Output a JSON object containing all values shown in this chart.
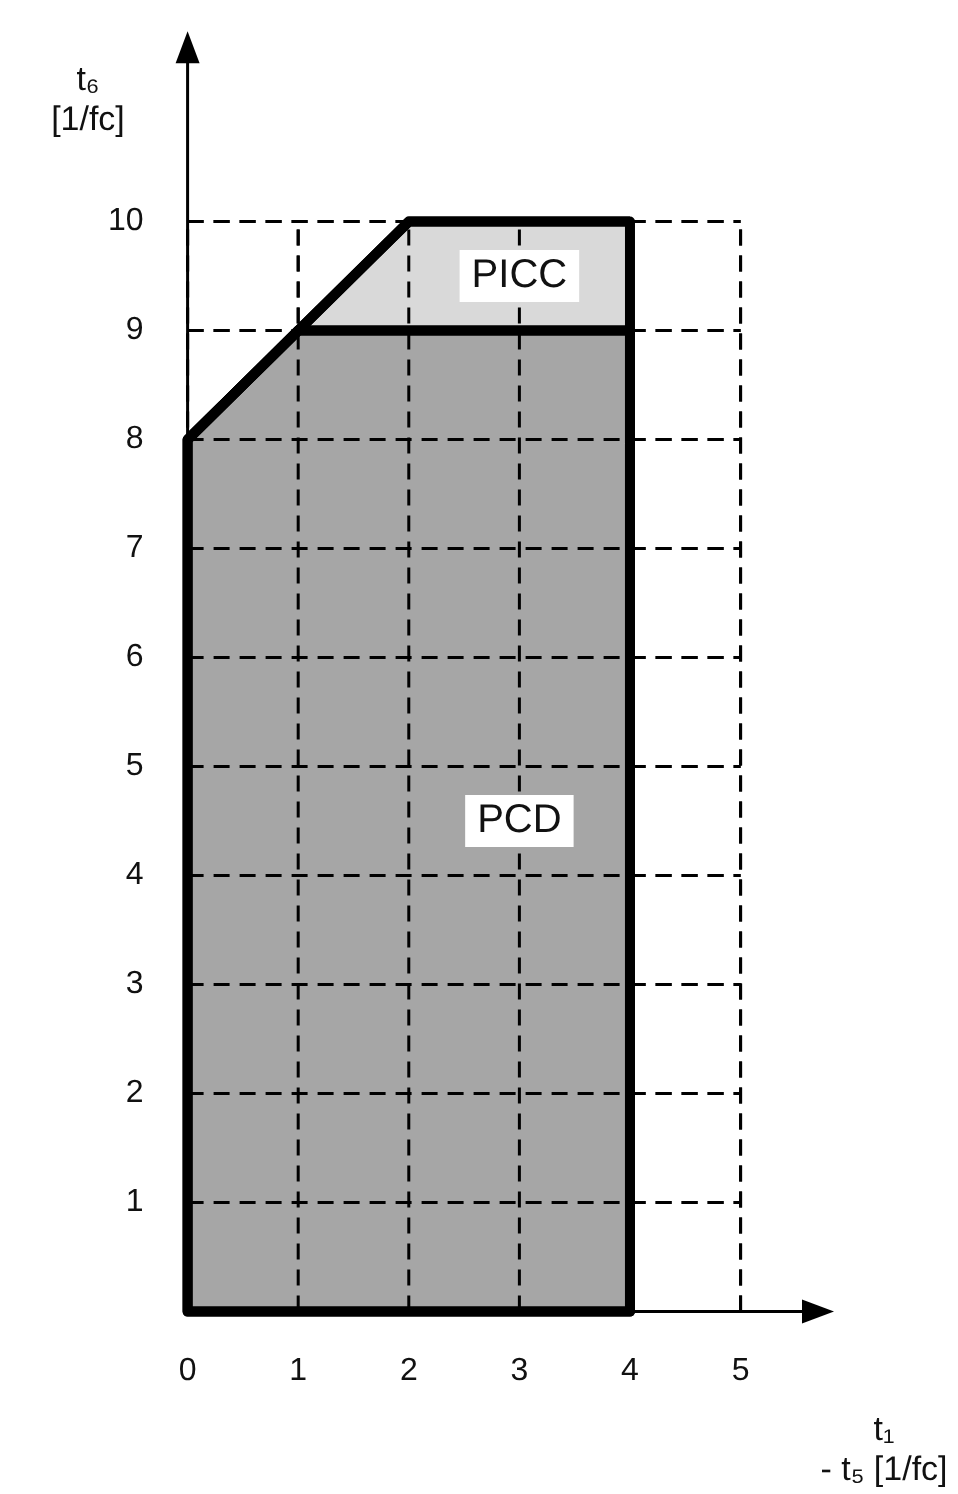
{
  "chart_data": {
    "type": "area",
    "stacked": true,
    "xlabel": "t₁ - t₅ [1/fc]",
    "ylabel": "t₆ [1/fc]",
    "x": [
      0,
      1,
      2,
      4
    ],
    "series": [
      {
        "name": "PCD",
        "color": "#a6a6a6",
        "values": [
          8,
          9,
          9,
          9
        ]
      },
      {
        "name": "PICC",
        "color": "#d9d9d9",
        "values": [
          0,
          0,
          1,
          1
        ]
      }
    ],
    "xlim": [
      0,
      5.7
    ],
    "xticks": [
      0,
      1,
      2,
      3,
      4,
      5
    ],
    "ylim": [
      0,
      11.6
    ],
    "yticks": [
      {
        "value": 0,
        "label": null
      },
      1,
      2,
      3,
      4,
      5,
      6,
      7,
      8,
      9,
      10
    ],
    "grid": true,
    "legend": false,
    "marker": "none"
  }
}
